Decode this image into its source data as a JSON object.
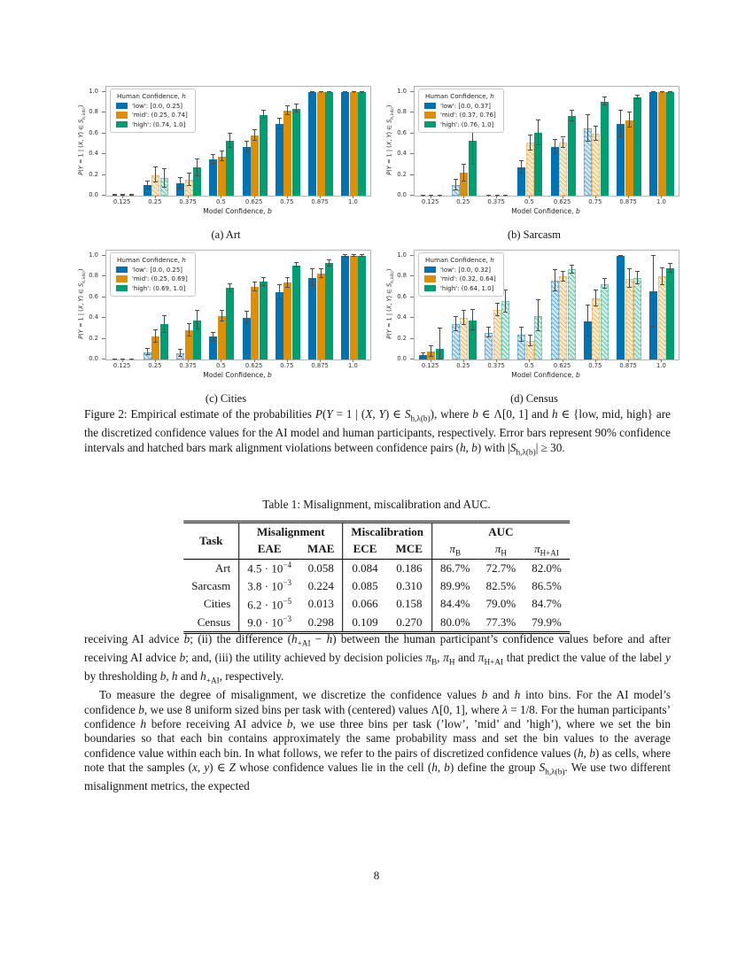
{
  "page": {
    "number": "8"
  },
  "figure": {
    "caption": "Figure 2: Empirical estimate of the probabilities *P*(*Y* = 1 | (*X*, *Y*) ∈ *S*_{h,λ(b)}), where *b* ∈ Λ[0, 1] and *h* ∈ {low, mid, high} are the discretized confidence values for the AI model and human participants, respectively. Error bars represent 90% confidence intervals and hatched bars mark alignment violations between confidence pairs (*h*, *b*) with |*S*_{h,λ(b)}| ≥ 30.",
    "subcaptions": [
      "(a) Art",
      "(b) Sarcasm",
      "(c) Cities",
      "(d) Census"
    ]
  },
  "chart_data": [
    {
      "type": "bar",
      "title": "(a) Art",
      "xlabel": "Model Confidence, *b*",
      "ylabel": "*P*(*Y* = 1 | (*X*, *Y*) ∈ *S*_{h,λ(b)})",
      "legend_title": "Human Confidence, *h*",
      "legend_position": "upper left",
      "grid": false,
      "ylim": [
        0,
        1.05
      ],
      "yticks": [
        0.0,
        0.2,
        0.4,
        0.6,
        0.8,
        1.0
      ],
      "categories": [
        "0.125",
        "0.25",
        "0.375",
        "0.5",
        "0.625",
        "0.75",
        "0.875",
        "1.0"
      ],
      "series": [
        {
          "name": "'low': [0.0, 0.25]",
          "color": "#0173b2",
          "values": [
            0,
            0.1,
            0.12,
            0.35,
            0.47,
            0.69,
            1.0,
            1.0
          ],
          "err": [
            0.005,
            0.04,
            0.05,
            0.04,
            0.05,
            0.05,
            0.004,
            0.004
          ],
          "hatched": [
            false,
            false,
            false,
            false,
            false,
            false,
            false,
            false
          ]
        },
        {
          "name": "'mid': (0.25, 0.74]",
          "color": "#de8f05",
          "values": [
            0,
            0.2,
            0.15,
            0.38,
            0.58,
            0.82,
            1.0,
            1.0
          ],
          "err": [
            0.005,
            0.07,
            0.06,
            0.05,
            0.05,
            0.04,
            0.004,
            0.004
          ],
          "hatched": [
            false,
            true,
            true,
            false,
            false,
            false,
            false,
            false
          ]
        },
        {
          "name": "'high': (0.74, 1.0]",
          "color": "#029e73",
          "values": [
            0,
            0.17,
            0.27,
            0.53,
            0.78,
            0.84,
            1.0,
            1.0
          ],
          "err": [
            0.005,
            0.09,
            0.08,
            0.07,
            0.04,
            0.04,
            0.004,
            0.004
          ],
          "hatched": [
            false,
            true,
            false,
            false,
            false,
            false,
            false,
            false
          ]
        }
      ]
    },
    {
      "type": "bar",
      "title": "(b) Sarcasm",
      "xlabel": "Model Confidence, *b*",
      "ylabel": "*P*(*Y* = 1 | (*X*, *Y*) ∈ *S*_{h,λ(b)})",
      "legend_title": "Human Confidence, *h*",
      "legend_position": "upper left",
      "grid": false,
      "ylim": [
        0,
        1.05
      ],
      "yticks": [
        0.0,
        0.2,
        0.4,
        0.6,
        0.8,
        1.0
      ],
      "categories": [
        "0.125",
        "0.25",
        "0.375",
        "0.5",
        "0.625",
        "0.75",
        "0.875",
        "1.0"
      ],
      "series": [
        {
          "name": "'low': [0.0, 0.37]",
          "color": "#0173b2",
          "values": [
            0,
            0.1,
            0,
            0.27,
            0.47,
            0.65,
            0.69,
            1.0
          ],
          "err": [
            0.004,
            0.05,
            0.004,
            0.06,
            0.07,
            0.13,
            0.13,
            0.004
          ],
          "hatched": [
            false,
            true,
            false,
            false,
            false,
            true,
            false,
            false
          ]
        },
        {
          "name": "'mid': (0.37, 0.76]",
          "color": "#de8f05",
          "values": [
            0,
            0.22,
            0,
            0.51,
            0.51,
            0.6,
            0.73,
            1.0
          ],
          "err": [
            0.004,
            0.08,
            0.004,
            0.07,
            0.05,
            0.07,
            0.07,
            0.004
          ],
          "hatched": [
            false,
            false,
            false,
            true,
            true,
            true,
            false,
            false
          ]
        },
        {
          "name": "'high': (0.76, 1.0]",
          "color": "#029e73",
          "values": [
            0,
            0.53,
            0,
            0.61,
            0.77,
            0.91,
            0.95,
            1.0
          ],
          "err": [
            0.004,
            0.23,
            0.004,
            0.12,
            0.05,
            0.04,
            0.02,
            0.004
          ],
          "hatched": [
            false,
            false,
            false,
            false,
            false,
            false,
            false,
            false
          ]
        }
      ]
    },
    {
      "type": "bar",
      "title": "(c) Cities",
      "xlabel": "Model Confidence, *b*",
      "ylabel": "*P*(*Y* = 1 | (*X*, *Y*) ∈ *S*_{h,λ(b)})",
      "legend_title": "Human Confidence, *h*",
      "legend_position": "upper left",
      "grid": false,
      "ylim": [
        0,
        1.05
      ],
      "yticks": [
        0.0,
        0.2,
        0.4,
        0.6,
        0.8,
        1.0
      ],
      "categories": [
        "0.125",
        "0.25",
        "0.375",
        "0.5",
        "0.625",
        "0.75",
        "0.875",
        "1.0"
      ],
      "series": [
        {
          "name": "'low': [0.0, 0.25]",
          "color": "#0173b2",
          "values": [
            0,
            0.07,
            0.06,
            0.22,
            0.4,
            0.65,
            0.79,
            1.0
          ],
          "err": [
            0.004,
            0.03,
            0.03,
            0.04,
            0.06,
            0.07,
            0.08,
            0.006
          ],
          "hatched": [
            false,
            true,
            true,
            false,
            false,
            false,
            false,
            false
          ]
        },
        {
          "name": "'mid': (0.25, 0.69]",
          "color": "#de8f05",
          "values": [
            0,
            0.22,
            0.28,
            0.42,
            0.7,
            0.74,
            0.83,
            1.0
          ],
          "err": [
            0.004,
            0.06,
            0.06,
            0.05,
            0.04,
            0.05,
            0.04,
            0.006
          ],
          "hatched": [
            false,
            false,
            false,
            false,
            false,
            false,
            false,
            false
          ]
        },
        {
          "name": "'high': (0.69, 1.0]",
          "color": "#029e73",
          "values": [
            0,
            0.34,
            0.38,
            0.69,
            0.75,
            0.91,
            0.93,
            1.0
          ],
          "err": [
            0.004,
            0.08,
            0.09,
            0.04,
            0.04,
            0.02,
            0.03,
            0.006
          ],
          "hatched": [
            false,
            false,
            false,
            false,
            false,
            false,
            false,
            false
          ]
        }
      ]
    },
    {
      "type": "bar",
      "title": "(d) Census",
      "xlabel": "Model Confidence, *b*",
      "ylabel": "*P*(*Y* = 1 | (*X*, *Y*) ∈ *S*_{h,λ(b)})",
      "legend_title": "Human Confidence, *h*",
      "legend_position": "upper left",
      "grid": false,
      "ylim": [
        0,
        1.05
      ],
      "yticks": [
        0.0,
        0.2,
        0.4,
        0.6,
        0.8,
        1.0
      ],
      "categories": [
        "0.125",
        "0.25",
        "0.375",
        "0.5",
        "0.625",
        "0.75",
        "0.875",
        "1.0"
      ],
      "series": [
        {
          "name": "'low': [0.0, 0.32]",
          "color": "#0173b2",
          "values": [
            0.04,
            0.34,
            0.26,
            0.24,
            0.76,
            0.37,
            1.0,
            0.66
          ],
          "err": [
            0.02,
            0.07,
            0.05,
            0.07,
            0.1,
            0.15,
            0.004,
            0.34
          ],
          "hatched": [
            false,
            true,
            true,
            true,
            true,
            false,
            false,
            false
          ]
        },
        {
          "name": "'mid': (0.32, 0.64]",
          "color": "#de8f05",
          "values": [
            0.08,
            0.4,
            0.48,
            0.18,
            0.8,
            0.59,
            0.78,
            0.8
          ],
          "err": [
            0.05,
            0.07,
            0.06,
            0.05,
            0.05,
            0.08,
            0.09,
            0.08
          ],
          "hatched": [
            false,
            true,
            true,
            true,
            true,
            true,
            true,
            true
          ]
        },
        {
          "name": "'high': (0.64, 1.0]",
          "color": "#029e73",
          "values": [
            0.1,
            0.38,
            0.56,
            0.42,
            0.87,
            0.73,
            0.79,
            0.88
          ],
          "err": [
            0.2,
            0.1,
            0.11,
            0.15,
            0.04,
            0.05,
            0.06,
            0.04
          ],
          "hatched": [
            false,
            false,
            true,
            true,
            true,
            true,
            true,
            false
          ]
        }
      ]
    }
  ],
  "table": {
    "title": "Table 1: Misalignment, miscalibration and AUC.",
    "groups": [
      {
        "label": "Task",
        "span": 1,
        "rowspan": 2
      },
      {
        "label": "Misalignment",
        "span": 2,
        "rowspan": 1
      },
      {
        "label": "Miscalibration",
        "span": 2,
        "rowspan": 1
      },
      {
        "label": "AUC",
        "span": 3,
        "rowspan": 1
      }
    ],
    "sub_headers": [
      {
        "label": "EAE",
        "bold": true
      },
      {
        "label": "MAE",
        "bold": true
      },
      {
        "label": "ECE",
        "bold": true
      },
      {
        "label": "MCE",
        "bold": true
      },
      {
        "label": "*π*_{B}",
        "bold": false
      },
      {
        "label": "*π*_{H}",
        "bold": false
      },
      {
        "label": "*π*_{H+AI}",
        "bold": false
      }
    ],
    "rows": [
      [
        "Art",
        "4.5 · 10^{−4}",
        "0.058",
        "0.084",
        "0.186",
        "86.7%",
        "72.7%",
        "82.0%"
      ],
      [
        "Sarcasm",
        "3.8 · 10^{−3}",
        "0.224",
        "0.085",
        "0.310",
        "89.9%",
        "82.5%",
        "86.5%"
      ],
      [
        "Cities",
        "6.2 · 10^{−5}",
        "0.013",
        "0.066",
        "0.158",
        "84.4%",
        "79.0%",
        "84.7%"
      ],
      [
        "Census",
        "9.0 · 10^{−3}",
        "0.298",
        "0.109",
        "0.270",
        "80.0%",
        "77.3%",
        "79.9%"
      ]
    ]
  },
  "body": {
    "paragraph1": "receiving AI advice *b*; (ii) the difference (*h*_{+AI} − *h*) between the human participant’s confidence values before and after receiving AI advice *b*; and, (iii) the utility achieved by decision policies *π*_{B}, *π*_{H} and *π*_{H+AI} that predict the value of the label *y* by thresholding *b*, *h* and *h*_{+AI}, respectively.",
    "paragraph2": "To measure the degree of misalignment, we discretize the confidence values *b* and *h* into bins. For the AI model’s confidence *b*, we use 8 uniform sized bins per task with (centered) values Λ[0, 1], where *λ* = 1/8. For the human participants’ confidence *h* before receiving AI advice *b*, we use three bins per task (’low’, ’mid’ and ’high’), where we set the bin boundaries so that each bin contains approximately the same probability mass and set the bin values to the average confidence value within each bin. In what follows, we refer to the pairs of discretized confidence values (*h*, *b*) as cells, where note that the samples (*x*, *y*) ∈ *Z* whose confidence values lie in the cell (*h*, *b*) define the group *S*_{h,λ(b)}. We use two different misalignment metrics, the expected"
  }
}
